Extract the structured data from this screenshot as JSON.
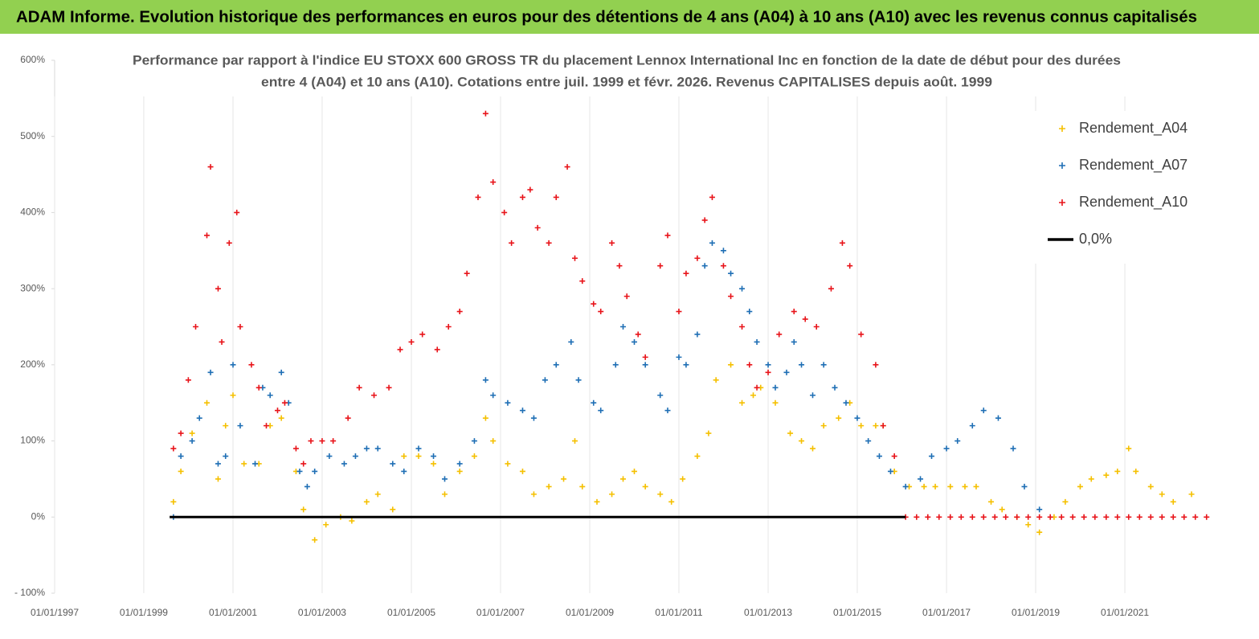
{
  "header": {
    "title": "ADAM Informe. Evolution historique des performances en euros pour des détentions de 4 ans (A04) à 10 ans (A10) avec les revenus connus capitalisés"
  },
  "chart_data": {
    "type": "scatter",
    "title_lines": [
      "Performance par rapport à l'indice EU STOXX 600 GROSS TR  du placement Lennox International Inc en fonction de la date de début pour des durées",
      "entre 4 (A04) et 10 ans (A10). Cotations entre juil. 1999 et févr. 2026. Revenus CAPITALISES depuis août. 1999"
    ],
    "xlim": [
      "1997-01",
      "2023-01"
    ],
    "xticks": [
      {
        "value": "1997-01",
        "label": "01/01/1997"
      },
      {
        "value": "1999-01",
        "label": "01/01/1999"
      },
      {
        "value": "2001-01",
        "label": "01/01/2001"
      },
      {
        "value": "2003-01",
        "label": "01/01/2003"
      },
      {
        "value": "2005-01",
        "label": "01/01/2005"
      },
      {
        "value": "2007-01",
        "label": "01/01/2007"
      },
      {
        "value": "2009-01",
        "label": "01/01/2009"
      },
      {
        "value": "2011-01",
        "label": "01/01/2011"
      },
      {
        "value": "2013-01",
        "label": "01/01/2013"
      },
      {
        "value": "2015-01",
        "label": "01/01/2015"
      },
      {
        "value": "2017-01",
        "label": "01/01/2017"
      },
      {
        "value": "2019-01",
        "label": "01/01/2019"
      },
      {
        "value": "2021-01",
        "label": "01/01/2021"
      }
    ],
    "ylim": [
      -100,
      600
    ],
    "yticks": [
      {
        "value": -100,
        "label": "- 100%"
      },
      {
        "value": 0,
        "label": "0%"
      },
      {
        "value": 100,
        "label": "100%"
      },
      {
        "value": 200,
        "label": "200%"
      },
      {
        "value": 300,
        "label": "300%"
      },
      {
        "value": 400,
        "label": "400%"
      },
      {
        "value": 500,
        "label": "500%"
      },
      {
        "value": 600,
        "label": "600%"
      }
    ],
    "legend": "upper right",
    "series": [
      {
        "name": "Rendement_A04",
        "color": "#f5c000",
        "x": [
          "1999-09",
          "1999-11",
          "2000-02",
          "2000-06",
          "2000-09",
          "2000-11",
          "2001-01",
          "2001-04",
          "2001-08",
          "2001-11",
          "2002-02",
          "2002-06",
          "2002-08",
          "2002-11",
          "2003-02",
          "2003-06",
          "2003-09",
          "2004-01",
          "2004-04",
          "2004-08",
          "2004-11",
          "2005-03",
          "2005-07",
          "2005-10",
          "2006-02",
          "2006-06",
          "2006-09",
          "2006-11",
          "2007-03",
          "2007-07",
          "2007-10",
          "2008-02",
          "2008-06",
          "2008-09",
          "2008-11",
          "2009-03",
          "2009-07",
          "2009-10",
          "2010-01",
          "2010-04",
          "2010-08",
          "2010-11",
          "2011-02",
          "2011-06",
          "2011-09",
          "2011-11",
          "2012-03",
          "2012-06",
          "2012-09",
          "2012-11",
          "2013-03",
          "2013-07",
          "2013-10",
          "2014-01",
          "2014-04",
          "2014-08",
          "2014-11",
          "2015-02",
          "2015-06",
          "2015-08",
          "2015-11",
          "2016-03",
          "2016-07",
          "2016-10",
          "2017-02",
          "2017-06",
          "2017-09",
          "2018-01",
          "2018-04",
          "2018-08",
          "2018-11",
          "2019-02",
          "2019-06",
          "2019-09",
          "2020-01",
          "2020-04",
          "2020-08",
          "2020-11",
          "2021-02",
          "2021-04",
          "2021-08",
          "2021-11",
          "2022-02",
          "2022-07"
        ],
        "values": [
          20,
          60,
          110,
          150,
          50,
          120,
          160,
          70,
          70,
          120,
          130,
          60,
          10,
          -30,
          -10,
          0,
          -5,
          20,
          30,
          10,
          80,
          80,
          70,
          30,
          60,
          80,
          130,
          100,
          70,
          60,
          30,
          40,
          50,
          100,
          40,
          20,
          30,
          50,
          60,
          40,
          30,
          20,
          50,
          80,
          110,
          180,
          200,
          150,
          160,
          170,
          150,
          110,
          100,
          90,
          120,
          130,
          150,
          120,
          120,
          120,
          60,
          40,
          40,
          40,
          40,
          40,
          40,
          20,
          10,
          0,
          -10,
          -20,
          0,
          20,
          40,
          50,
          55,
          60,
          90,
          60,
          40,
          30,
          20,
          30
        ]
      },
      {
        "name": "Rendement_A07",
        "color": "#1f6fb5",
        "x": [
          "1999-09",
          "1999-11",
          "2000-02",
          "2000-04",
          "2000-07",
          "2000-09",
          "2000-11",
          "2001-01",
          "2001-03",
          "2001-07",
          "2001-09",
          "2001-11",
          "2002-02",
          "2002-04",
          "2002-07",
          "2002-09",
          "2002-11",
          "2003-03",
          "2003-07",
          "2003-10",
          "2004-01",
          "2004-04",
          "2004-08",
          "2004-11",
          "2005-03",
          "2005-07",
          "2005-10",
          "2006-02",
          "2006-06",
          "2006-09",
          "2006-11",
          "2007-03",
          "2007-07",
          "2007-10",
          "2008-01",
          "2008-04",
          "2008-08",
          "2008-10",
          "2009-02",
          "2009-04",
          "2009-08",
          "2009-10",
          "2010-01",
          "2010-04",
          "2010-08",
          "2010-10",
          "2011-01",
          "2011-03",
          "2011-06",
          "2011-08",
          "2011-10",
          "2012-01",
          "2012-03",
          "2012-06",
          "2012-08",
          "2012-10",
          "2013-01",
          "2013-03",
          "2013-06",
          "2013-08",
          "2013-10",
          "2014-01",
          "2014-04",
          "2014-07",
          "2014-10",
          "2015-01",
          "2015-04",
          "2015-07",
          "2015-10",
          "2016-02",
          "2016-06",
          "2016-09",
          "2017-01",
          "2017-04",
          "2017-08",
          "2017-11",
          "2018-03",
          "2018-07",
          "2018-10",
          "2019-02"
        ],
        "values": [
          0,
          80,
          100,
          130,
          190,
          70,
          80,
          200,
          120,
          70,
          170,
          160,
          190,
          150,
          60,
          40,
          60,
          80,
          70,
          80,
          90,
          90,
          70,
          60,
          90,
          80,
          50,
          70,
          100,
          180,
          160,
          150,
          140,
          130,
          180,
          200,
          230,
          180,
          150,
          140,
          200,
          250,
          230,
          200,
          160,
          140,
          210,
          200,
          240,
          330,
          360,
          350,
          320,
          300,
          270,
          230,
          200,
          170,
          190,
          230,
          200,
          160,
          200,
          170,
          150,
          130,
          100,
          80,
          60,
          40,
          50,
          80,
          90,
          100,
          120,
          140,
          130,
          90,
          40,
          10
        ]
      },
      {
        "name": "Rendement_A10",
        "color": "#e8141a",
        "x": [
          "1999-09",
          "1999-11",
          "2000-01",
          "2000-03",
          "2000-06",
          "2000-07",
          "2000-09",
          "2000-10",
          "2000-12",
          "2001-02",
          "2001-03",
          "2001-06",
          "2001-08",
          "2001-10",
          "2002-01",
          "2002-03",
          "2002-06",
          "2002-08",
          "2002-10",
          "2003-01",
          "2003-04",
          "2003-08",
          "2003-11",
          "2004-03",
          "2004-07",
          "2004-10",
          "2005-01",
          "2005-04",
          "2005-08",
          "2005-11",
          "2006-02",
          "2006-04",
          "2006-07",
          "2006-09",
          "2006-11",
          "2007-02",
          "2007-04",
          "2007-07",
          "2007-09",
          "2007-11",
          "2008-02",
          "2008-04",
          "2008-07",
          "2008-09",
          "2008-11",
          "2009-02",
          "2009-04",
          "2009-07",
          "2009-09",
          "2009-11",
          "2010-02",
          "2010-04",
          "2010-08",
          "2010-10",
          "2011-01",
          "2011-03",
          "2011-06",
          "2011-08",
          "2011-10",
          "2012-01",
          "2012-03",
          "2012-06",
          "2012-08",
          "2012-10",
          "2013-01",
          "2013-04",
          "2013-08",
          "2013-11",
          "2014-02",
          "2014-06",
          "2014-09",
          "2014-11",
          "2015-02",
          "2015-06",
          "2015-08",
          "2015-11",
          "2016-02",
          "2016-05",
          "2016-08",
          "2016-11",
          "2017-02",
          "2017-05",
          "2017-08",
          "2017-11",
          "2018-02",
          "2018-05",
          "2018-08",
          "2018-11",
          "2019-02",
          "2019-05",
          "2019-08",
          "2019-11",
          "2020-02",
          "2020-05",
          "2020-08",
          "2020-11",
          "2021-02",
          "2021-05",
          "2021-08",
          "2021-11",
          "2022-02",
          "2022-05",
          "2022-08",
          "2022-11"
        ],
        "values": [
          90,
          110,
          180,
          250,
          370,
          460,
          300,
          230,
          360,
          400,
          250,
          200,
          170,
          120,
          140,
          150,
          90,
          70,
          100,
          100,
          100,
          130,
          170,
          160,
          170,
          220,
          230,
          240,
          220,
          250,
          270,
          320,
          420,
          530,
          440,
          400,
          360,
          420,
          430,
          380,
          360,
          420,
          460,
          340,
          310,
          280,
          270,
          360,
          330,
          290,
          240,
          210,
          330,
          370,
          270,
          320,
          340,
          390,
          420,
          330,
          290,
          250,
          200,
          170,
          190,
          240,
          270,
          260,
          250,
          300,
          360,
          330,
          240,
          200,
          120,
          80,
          0,
          0,
          0,
          0,
          0,
          0,
          0,
          0,
          0,
          0,
          0,
          0,
          0,
          0,
          0,
          0,
          0,
          0,
          0,
          0,
          0,
          0,
          0,
          0,
          0,
          0,
          0,
          0
        ]
      },
      {
        "name": "0,0%",
        "color": "#000000",
        "type": "line",
        "x": [
          "1999-08",
          "2016-02"
        ],
        "values": [
          0,
          0
        ]
      }
    ]
  }
}
